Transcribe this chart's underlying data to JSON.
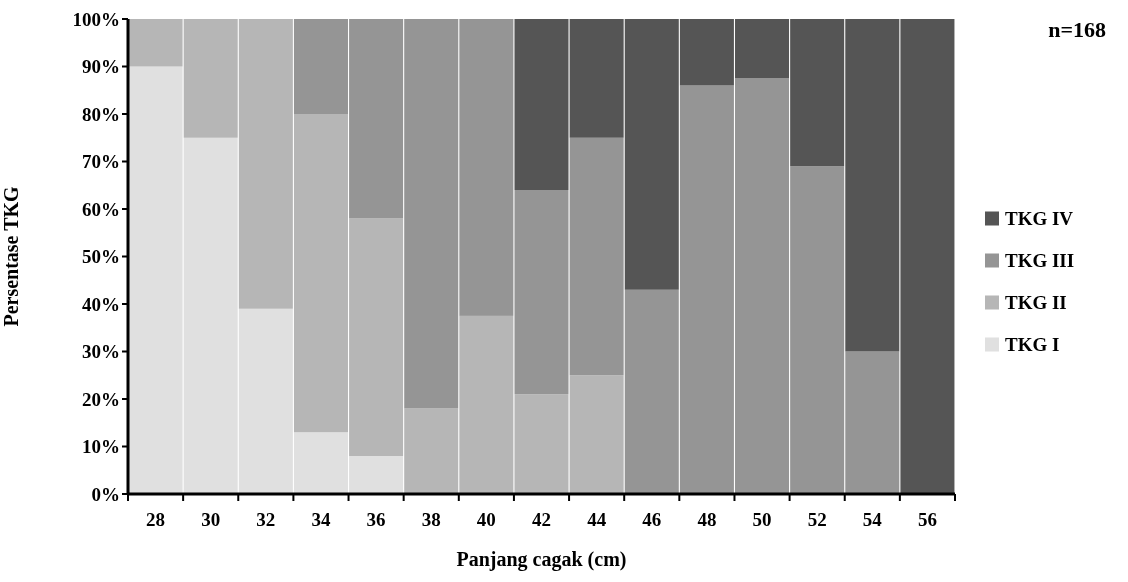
{
  "chart_data": {
    "type": "bar",
    "stacked": true,
    "xlabel": "Panjang cagak (cm)",
    "ylabel": "Persentase TKG",
    "annotations": [
      "n=168"
    ],
    "categories": [
      "28",
      "30",
      "32",
      "34",
      "36",
      "38",
      "40",
      "42",
      "44",
      "46",
      "48",
      "50",
      "52",
      "54",
      "56"
    ],
    "series": [
      {
        "name": "TKG I",
        "color": "#e0e0e0",
        "values": [
          90,
          75,
          39,
          13,
          8,
          0,
          0,
          0,
          0,
          0,
          0,
          0,
          0,
          0,
          0
        ]
      },
      {
        "name": "TKG II",
        "color": "#b6b6b6",
        "values": [
          10,
          25,
          61,
          67,
          50,
          18,
          37.5,
          21,
          25,
          0,
          0,
          0,
          0,
          0,
          0
        ]
      },
      {
        "name": "TKG III",
        "color": "#959595",
        "values": [
          0,
          0,
          0,
          20,
          42,
          82,
          62.5,
          43,
          50,
          43,
          86,
          87.5,
          69,
          30,
          0
        ]
      },
      {
        "name": "TKG IV",
        "color": "#555555",
        "values": [
          0,
          0,
          0,
          0,
          0,
          0,
          0,
          36,
          25,
          57,
          14,
          12.5,
          31,
          70,
          100
        ]
      }
    ],
    "ylim": [
      0,
      100
    ],
    "yticks": [
      {
        "value": 0,
        "label": "0%"
      },
      {
        "value": 10,
        "label": "10%"
      },
      {
        "value": 20,
        "label": "20%"
      },
      {
        "value": 30,
        "label": "30%"
      },
      {
        "value": 40,
        "label": "40%"
      },
      {
        "value": 50,
        "label": "50%"
      },
      {
        "value": 60,
        "label": "60%"
      },
      {
        "value": 70,
        "label": "70%"
      },
      {
        "value": 80,
        "label": "80%"
      },
      {
        "value": 90,
        "label": "90%"
      },
      {
        "value": 100,
        "label": "100%"
      }
    ],
    "grid": false,
    "legend": "right"
  }
}
